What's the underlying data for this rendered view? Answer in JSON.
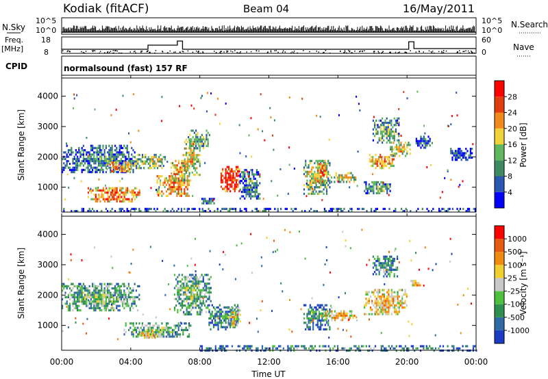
{
  "header": {
    "station": "Kodiak (fitACF)",
    "beam": "Beam 04",
    "date": "16/May/2011"
  },
  "summary": {
    "nsky_label": "N.Sky",
    "nsky_ticks": [
      "10^5",
      "10^0"
    ],
    "nsearch_label": "N.Search",
    "nsearch_ticks": [
      "10^5",
      "10^0"
    ],
    "freq_label": "Freq.",
    "freq_unit": "[MHz]",
    "freq_ticks": [
      "18",
      "8"
    ],
    "nave_label": "Nave",
    "nave_ticks": [
      "60",
      "0"
    ],
    "cpid_label": "CPID",
    "cpid_text": "normalsound (fast) 157 RF"
  },
  "chart_data": [
    {
      "type": "heatmap",
      "name": "power",
      "ylabel": "Slant Range [km]",
      "ylim": [
        180,
        4600
      ],
      "yticks": [
        1000,
        2000,
        3000,
        4000
      ],
      "colorbar_label": "Power [dB]",
      "colorbar_ticks": [
        "4",
        "8",
        "12",
        "16",
        "20",
        "24",
        "28"
      ],
      "colors": [
        "#0000ff",
        "#2a57b0",
        "#3f8a60",
        "#5fb85f",
        "#f2d23a",
        "#f08a1e",
        "#e23d10",
        "#ff0000"
      ],
      "regions": [
        {
          "t": [
            0.0,
            4.2
          ],
          "r": [
            1500,
            2400
          ],
          "v": 0.35
        },
        {
          "t": [
            1.5,
            4.5
          ],
          "r": [
            500,
            1000
          ],
          "v": 0.8
        },
        {
          "t": [
            2.5,
            4.0
          ],
          "r": [
            1500,
            1850
          ],
          "v": 0.75
        },
        {
          "t": [
            4.2,
            6.0
          ],
          "r": [
            1650,
            2100
          ],
          "v": 0.55
        },
        {
          "t": [
            5.5,
            7.5
          ],
          "r": [
            700,
            1400
          ],
          "v": 0.75
        },
        {
          "t": [
            6.3,
            7.3
          ],
          "r": [
            1200,
            1900
          ],
          "v": 0.7
        },
        {
          "t": [
            7.0,
            8.0
          ],
          "r": [
            1400,
            2600
          ],
          "v": 0.6
        },
        {
          "t": [
            7.3,
            8.6
          ],
          "r": [
            2300,
            2900
          ],
          "v": 0.45
        },
        {
          "t": [
            8.0,
            8.8
          ],
          "r": [
            450,
            650
          ],
          "v": 0.35
        },
        {
          "t": [
            9.2,
            10.3
          ],
          "r": [
            900,
            1700
          ],
          "v": 0.95
        },
        {
          "t": [
            10.3,
            11.5
          ],
          "r": [
            600,
            1600
          ],
          "v": 0.35
        },
        {
          "t": [
            14.0,
            15.5
          ],
          "r": [
            800,
            1900
          ],
          "v": 0.55
        },
        {
          "t": [
            14.8,
            15.4
          ],
          "r": [
            1200,
            1800
          ],
          "v": 0.8
        },
        {
          "t": [
            15.5,
            17.0
          ],
          "r": [
            1200,
            1500
          ],
          "v": 0.6
        },
        {
          "t": [
            17.5,
            19.0
          ],
          "r": [
            800,
            1200
          ],
          "v": 0.4
        },
        {
          "t": [
            17.8,
            19.2
          ],
          "r": [
            1600,
            2100
          ],
          "v": 0.75
        },
        {
          "t": [
            18.0,
            19.5
          ],
          "r": [
            2500,
            3300
          ],
          "v": 0.45
        },
        {
          "t": [
            19.0,
            20.2
          ],
          "r": [
            2000,
            2500
          ],
          "v": 0.6
        },
        {
          "t": [
            20.5,
            21.3
          ],
          "r": [
            2300,
            2700
          ],
          "v": 0.3
        },
        {
          "t": [
            22.5,
            23.8
          ],
          "r": [
            1900,
            2300
          ],
          "v": 0.25
        },
        {
          "t": [
            0.0,
            24.0
          ],
          "r": [
            180,
            320
          ],
          "v": 0.3
        }
      ]
    },
    {
      "type": "heatmap",
      "name": "velocity",
      "ylabel": "Slant Range [km]",
      "ylim": [
        180,
        4600
      ],
      "yticks": [
        1000,
        2000,
        3000,
        4000
      ],
      "xlabel": "Time UT",
      "xticks": [
        "00:00",
        "04:00",
        "08:00",
        "12:00",
        "16:00",
        "20:00",
        "00:00"
      ],
      "xlim": [
        0,
        24
      ],
      "colorbar_label": "Velocity [m s⁻¹]",
      "colorbar_ticks": [
        "1000",
        "500",
        "100",
        "25",
        "-25",
        "-100",
        "-500",
        "-1000"
      ],
      "colors": [
        "#1c3cc4",
        "#2f6aa6",
        "#2f8f4f",
        "#4fbf3f",
        "#c8c8c8",
        "#f0d030",
        "#f08a10",
        "#e85a10",
        "#ff0000"
      ],
      "regions": [
        {
          "t": [
            0.0,
            4.5
          ],
          "r": [
            1500,
            2400
          ],
          "v": 0.45
        },
        {
          "t": [
            3.5,
            7.5
          ],
          "r": [
            600,
            1100
          ],
          "v": 0.45
        },
        {
          "t": [
            4.5,
            5.5
          ],
          "r": [
            600,
            850
          ],
          "v": 0.7
        },
        {
          "t": [
            6.5,
            8.6
          ],
          "r": [
            1400,
            2700
          ],
          "v": 0.45
        },
        {
          "t": [
            8.5,
            10.2
          ],
          "r": [
            900,
            1700
          ],
          "v": 0.3
        },
        {
          "t": [
            9.6,
            10.3
          ],
          "r": [
            1000,
            1600
          ],
          "v": 0.65
        },
        {
          "t": [
            14.0,
            15.5
          ],
          "r": [
            900,
            1700
          ],
          "v": 0.3
        },
        {
          "t": [
            15.0,
            17.0
          ],
          "r": [
            1200,
            1500
          ],
          "v": 0.7
        },
        {
          "t": [
            17.5,
            20.0
          ],
          "r": [
            1400,
            2200
          ],
          "v": 0.7
        },
        {
          "t": [
            18.0,
            19.5
          ],
          "r": [
            2600,
            3300
          ],
          "v": 0.35
        },
        {
          "t": [
            20.2,
            20.8
          ],
          "r": [
            2300,
            2500
          ],
          "v": 0.7
        },
        {
          "t": [
            8.0,
            24.0
          ],
          "r": [
            180,
            350
          ],
          "v": 0.3
        }
      ]
    }
  ],
  "colors": {
    "frame": "#000000",
    "background": "#ffffff"
  }
}
